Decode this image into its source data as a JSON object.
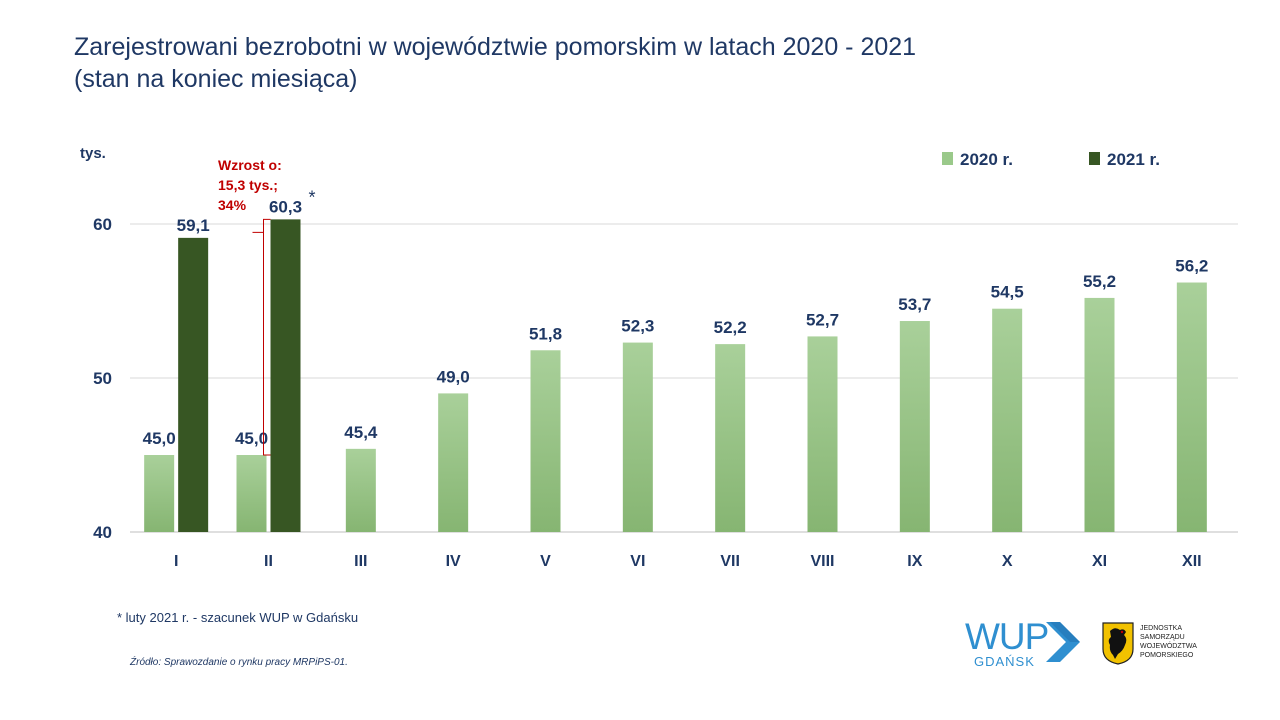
{
  "title": {
    "line1": "Zarejestrowani bezrobotni  w województwie pomorskim  w latach 2020 - 2021",
    "line2": "(stan na koniec miesiąca)"
  },
  "chart_data": {
    "type": "bar",
    "ylabel": "tys.",
    "ylim": [
      40,
      62
    ],
    "yticks": [
      40,
      50,
      60
    ],
    "grid": true,
    "legend_position": "top-right",
    "categories": [
      "I",
      "II",
      "III",
      "IV",
      "V",
      "VI",
      "VII",
      "VIII",
      "IX",
      "X",
      "XI",
      "XII"
    ],
    "series": [
      {
        "name": "2020 r.",
        "color": "#9ac98a",
        "values": [
          45.0,
          45.0,
          45.4,
          49.0,
          51.8,
          52.3,
          52.2,
          52.7,
          53.7,
          54.5,
          55.2,
          56.2
        ],
        "labels": [
          "45,0",
          "45,0",
          "45,4",
          "49,0",
          "51,8",
          "52,3",
          "52,2",
          "52,7",
          "53,7",
          "54,5",
          "55,2",
          "56,2"
        ]
      },
      {
        "name": "2021 r.",
        "color": "#375623",
        "values": [
          59.1,
          60.3,
          null,
          null,
          null,
          null,
          null,
          null,
          null,
          null,
          null,
          null
        ],
        "labels": [
          "59,1",
          "60,3*",
          null,
          null,
          null,
          null,
          null,
          null,
          null,
          null,
          null,
          null
        ]
      }
    ],
    "annotation": {
      "lines": [
        "Wzrost o:",
        "15,3 tys.;",
        "34%"
      ],
      "color": "#c00000",
      "from_value": 45.0,
      "to_value": 60.3,
      "category": "II"
    }
  },
  "footnote": "* luty 2021 r. - szacunek WUP w Gdańsku",
  "source": "Źródło: Sprawozdanie o rynku pracy MRPiPS-01.",
  "logos": {
    "wup_name": "WUP",
    "wup_city": "GDAŃSK",
    "crest_text": [
      "JEDNOSTKA",
      "SAMORZĄDU",
      "WOJEWÓDZTWA",
      "POMORSKIEGO"
    ]
  },
  "colors": {
    "text": "#1f3864",
    "accent_blue": "#2f8fd0",
    "annotation": "#c00000"
  }
}
